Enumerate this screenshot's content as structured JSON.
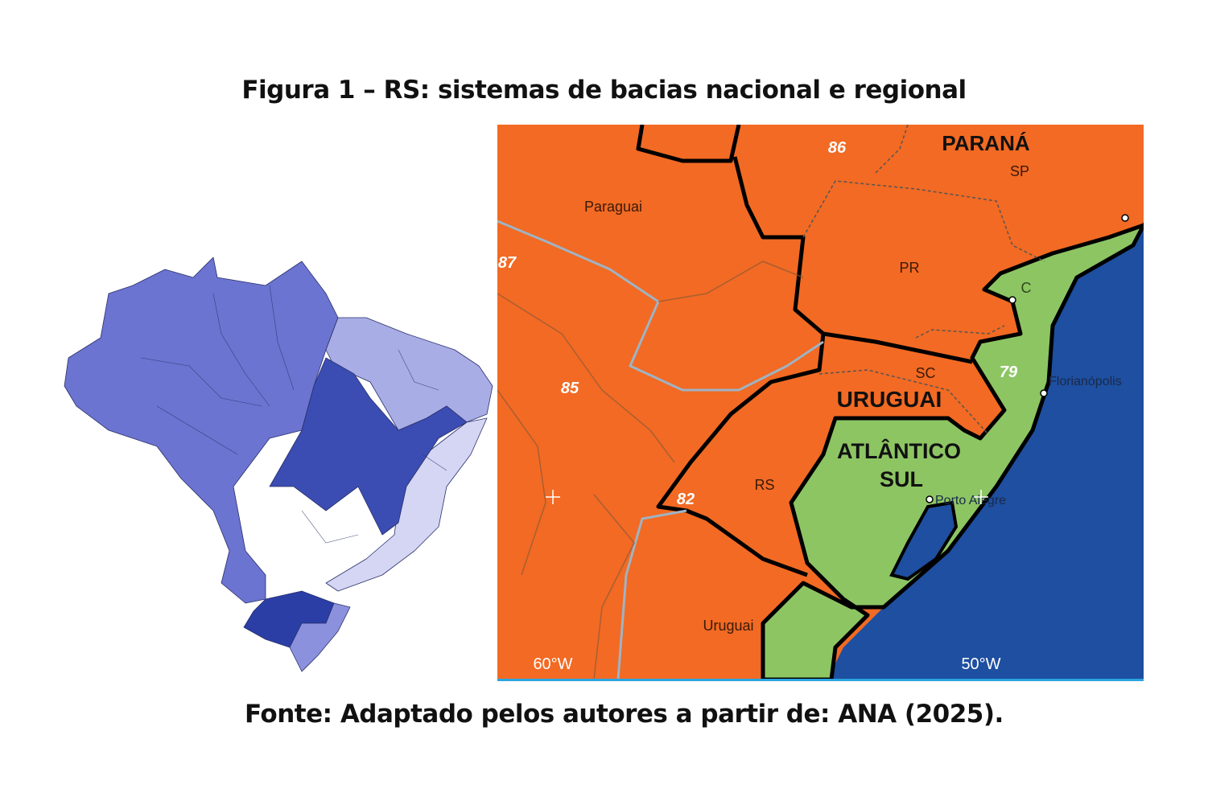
{
  "figure": {
    "title": "Figura 1 – RS: sistemas de bacias nacional e regional",
    "source": "Fonte: Adaptado pelos autores a partir de: ANA (2025)."
  },
  "colors": {
    "basin_fill": "#f26a23",
    "atlantico_sul_fill": "#8dc563",
    "ocean": "#1e4fa0",
    "border": "#000000",
    "brazil_regions": [
      "#6b74d0",
      "#a8ade6",
      "#d4d6f4",
      "#3b4db2",
      "#2a3ea6"
    ]
  },
  "map": {
    "basin_labels": [
      "PARANÁ",
      "URUGUAI",
      "ATLÂNTICO",
      "SUL"
    ],
    "subbasin_codes": [
      "86",
      "87",
      "85",
      "82",
      "79"
    ],
    "place_labels": [
      "Paraguai",
      "Uruguai",
      "SP",
      "PR",
      "SC",
      "RS",
      "C"
    ],
    "cities": [
      "Florianópolis",
      "Porto Alegre"
    ],
    "longitude_ticks": [
      "60°W",
      "50°W"
    ]
  }
}
